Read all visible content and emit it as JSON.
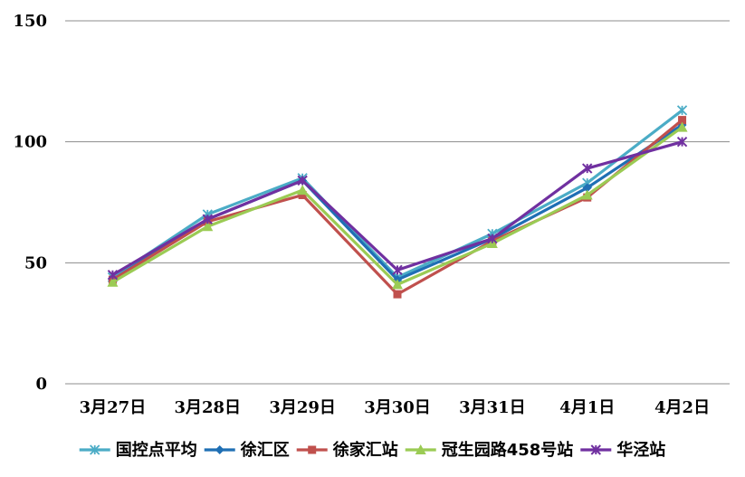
{
  "chart_data": {
    "type": "line",
    "categories": [
      "3月27日",
      "3月28日",
      "3月29日",
      "3月30日",
      "3月31日",
      "4月1日",
      "4月2日"
    ],
    "ylim": [
      0,
      150
    ],
    "yticks": [
      0,
      50,
      100,
      150
    ],
    "grid": true,
    "legend_position": "bottom",
    "series": [
      {
        "name": "国控点平均",
        "color": "#4bacc6",
        "marker": "asterisk",
        "values": [
          44,
          70,
          85,
          44,
          62,
          83,
          113
        ]
      },
      {
        "name": "徐汇区",
        "color": "#1f6fb4",
        "marker": "diamond",
        "values": [
          43,
          68,
          84,
          43,
          60,
          81,
          107
        ]
      },
      {
        "name": "徐家汇站",
        "color": "#c0504d",
        "marker": "square",
        "values": [
          43,
          67,
          78,
          37,
          59,
          77,
          109
        ]
      },
      {
        "name": "冠生园路458号站",
        "color": "#9bcb54",
        "marker": "triangle",
        "values": [
          42,
          65,
          80,
          41,
          58,
          78,
          106
        ]
      },
      {
        "name": "华泾站",
        "color": "#7030a0",
        "marker": "star",
        "values": [
          45,
          68,
          84,
          47,
          60,
          89,
          100
        ]
      }
    ]
  }
}
